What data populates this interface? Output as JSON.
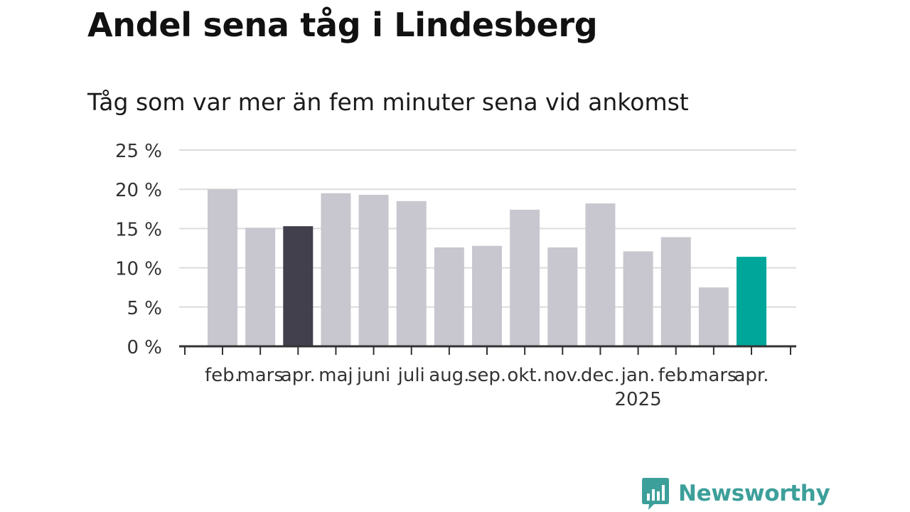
{
  "chart_data": {
    "type": "bar",
    "title": "Andel sena tåg i Lindesberg",
    "subtitle": "Tåg som var mer än fem minuter sena vid ankomst",
    "categories": [
      "feb.",
      "mars",
      "apr.",
      "maj",
      "juni",
      "juli",
      "aug.",
      "sep.",
      "okt.",
      "nov.",
      "dec.",
      "jan.",
      "feb.",
      "mars",
      "apr."
    ],
    "values": [
      20.0,
      15.1,
      15.3,
      19.5,
      19.3,
      18.5,
      12.6,
      12.8,
      17.4,
      12.6,
      18.2,
      12.1,
      13.9,
      7.5,
      11.4
    ],
    "year_labels": [
      {
        "index": 11,
        "label": "2025"
      }
    ],
    "ylim": [
      0,
      25
    ],
    "yticks": [
      0,
      5,
      10,
      15,
      20,
      25
    ],
    "ytick_labels": [
      "0 %",
      "5 %",
      "10 %",
      "15 %",
      "20 %",
      "25 %"
    ],
    "xlabel": "",
    "ylabel": "",
    "grid": true,
    "colors": {
      "default": "#c8c7cf",
      "previous_year": "#42404c",
      "current": "#00a69a"
    },
    "highlight": [
      {
        "index": 2,
        "color_key": "previous_year"
      },
      {
        "index": 14,
        "color_key": "current"
      }
    ]
  },
  "brand": {
    "name": "Newsworthy",
    "logo_icon": "newsworthy-logo-icon",
    "color": "#3d9f9a"
  }
}
